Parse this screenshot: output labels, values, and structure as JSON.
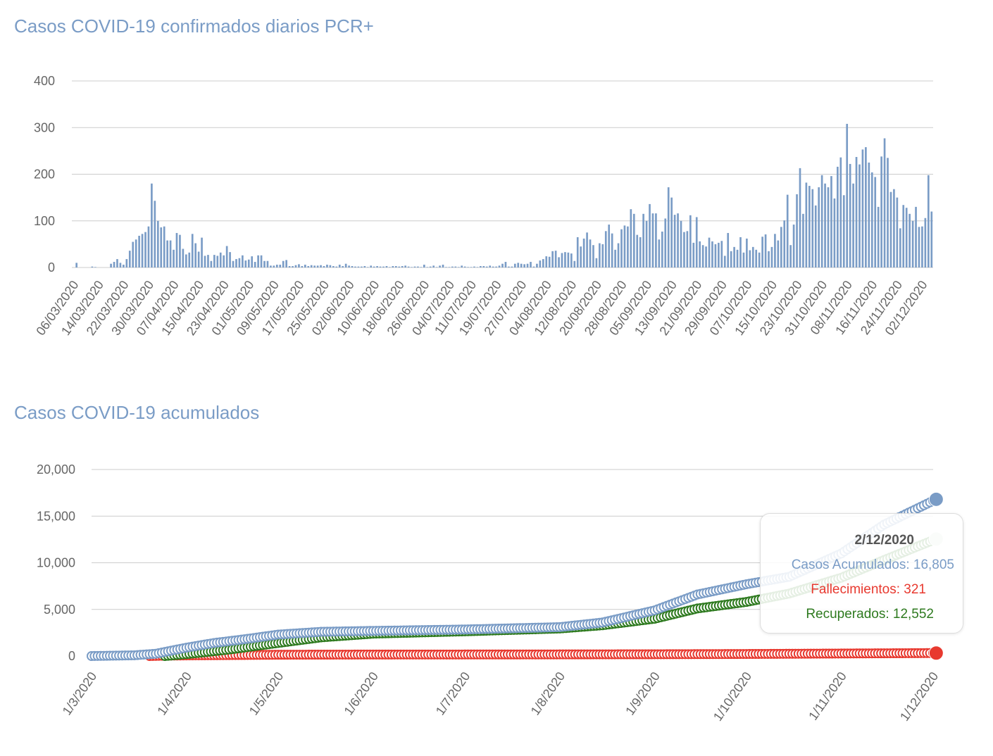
{
  "chart_data": [
    {
      "type": "bar",
      "title": "Casos COVID-19 confirmados diarios PCR+",
      "ylim": [
        0,
        400
      ],
      "yticks": [
        0,
        100,
        200,
        300,
        400
      ],
      "color": "#7a9cc6",
      "grid": true,
      "start_date": "06/03/2020",
      "x_tick_labels": [
        "06/03/2020",
        "14/03/2020",
        "22/03/2020",
        "30/03/2020",
        "07/04/2020",
        "15/04/2020",
        "23/04/2020",
        "01/05/2020",
        "09/05/2020",
        "17/05/2020",
        "25/05/2020",
        "02/06/2020",
        "10/06/2020",
        "18/06/2020",
        "26/06/2020",
        "04/07/2020",
        "11/07/2020",
        "19/07/2020",
        "27/07/2020",
        "04/08/2020",
        "12/08/2020",
        "20/08/2020",
        "28/08/2020",
        "05/09/2020",
        "13/09/2020",
        "21/09/2020",
        "29/09/2020",
        "07/10/2020",
        "15/10/2020",
        "23/10/2020",
        "31/10/2020",
        "08/11/2020",
        "16/11/2020",
        "24/11/2020",
        "02/12/2020"
      ],
      "values": [
        0,
        10,
        0,
        0,
        0,
        0,
        2,
        1,
        0,
        0,
        0,
        0,
        8,
        12,
        18,
        10,
        6,
        18,
        36,
        55,
        60,
        68,
        72,
        76,
        88,
        180,
        143,
        100,
        86,
        88,
        58,
        58,
        38,
        74,
        70,
        40,
        28,
        32,
        72,
        52,
        34,
        64,
        25,
        27,
        14,
        27,
        25,
        32,
        26,
        46,
        33,
        14,
        18,
        20,
        26,
        15,
        17,
        24,
        12,
        26,
        26,
        14,
        14,
        4,
        4,
        6,
        6,
        14,
        16,
        3,
        3,
        5,
        7,
        3,
        6,
        3,
        5,
        4,
        4,
        5,
        3,
        6,
        5,
        3,
        2,
        6,
        3,
        8,
        4,
        3,
        2,
        2,
        2,
        3,
        1,
        4,
        2,
        3,
        2,
        2,
        3,
        1,
        3,
        3,
        2,
        3,
        4,
        2,
        1,
        2,
        2,
        1,
        6,
        1,
        2,
        4,
        1,
        4,
        6,
        1,
        1,
        2,
        2,
        1,
        4,
        2,
        1,
        1,
        2,
        1,
        3,
        3,
        2,
        4,
        2,
        2,
        4,
        8,
        12,
        2,
        2,
        8,
        10,
        8,
        7,
        8,
        12,
        2,
        8,
        15,
        18,
        24,
        23,
        35,
        36,
        22,
        31,
        33,
        32,
        30,
        14,
        65,
        45,
        62,
        75,
        60,
        48,
        20,
        52,
        50,
        78,
        92,
        73,
        38,
        52,
        82,
        90,
        88,
        125,
        115,
        70,
        65,
        115,
        100,
        136,
        116,
        116,
        60,
        77,
        105,
        172,
        150,
        113,
        116,
        100,
        76,
        78,
        112,
        53,
        108,
        56,
        48,
        45,
        64,
        56,
        50,
        53,
        57,
        25,
        74,
        35,
        44,
        38,
        65,
        32,
        62,
        37,
        44,
        38,
        32,
        66,
        71,
        35,
        44,
        72,
        58,
        87,
        101,
        156,
        48,
        92,
        157,
        213,
        115,
        182,
        175,
        168,
        133,
        172,
        198,
        180,
        172,
        196,
        148,
        216,
        236,
        155,
        308,
        222,
        180,
        237,
        221,
        253,
        258,
        225,
        204,
        194,
        130,
        238,
        277,
        235,
        162,
        168,
        150,
        84,
        134,
        128,
        115,
        100,
        130,
        87,
        88,
        106,
        198,
        120
      ]
    },
    {
      "type": "scatter",
      "title": "Casos COVID-19 acumulados",
      "ylim": [
        0,
        20000
      ],
      "yticks": [
        "0",
        "5,000",
        "10,000",
        "15,000",
        "20,000"
      ],
      "grid": true,
      "x_tick_labels": [
        "1/3/2020",
        "1/4/2020",
        "1/5/2020",
        "1/6/2020",
        "1/7/2020",
        "1/8/2020",
        "1/9/2020",
        "1/10/2020",
        "1/11/2020",
        "1/12/2020"
      ],
      "series": [
        {
          "name": "Casos Acumulados",
          "color": "#7a9cc6",
          "points": [
            [
              "1/3/2020",
              0
            ],
            [
              "15/3/2020",
              80
            ],
            [
              "22/3/2020",
              250
            ],
            [
              "1/4/2020",
              900
            ],
            [
              "10/4/2020",
              1400
            ],
            [
              "20/4/2020",
              1800
            ],
            [
              "1/5/2020",
              2300
            ],
            [
              "15/5/2020",
              2600
            ],
            [
              "1/6/2020",
              2700
            ],
            [
              "1/7/2020",
              2850
            ],
            [
              "1/8/2020",
              3100
            ],
            [
              "15/8/2020",
              3600
            ],
            [
              "1/9/2020",
              4900
            ],
            [
              "15/9/2020",
              6600
            ],
            [
              "1/10/2020",
              7700
            ],
            [
              "15/10/2020",
              8500
            ],
            [
              "1/11/2020",
              11000
            ],
            [
              "15/11/2020",
              14100
            ],
            [
              "2/12/2020",
              16805
            ]
          ]
        },
        {
          "name": "Fallecimientos",
          "color": "#e8392f",
          "points": [
            [
              "1/3/2020",
              0
            ],
            [
              "20/3/2020",
              0
            ],
            [
              "25/3/2020",
              40
            ],
            [
              "1/4/2020",
              70
            ],
            [
              "1/5/2020",
              140
            ],
            [
              "1/6/2020",
              160
            ],
            [
              "1/7/2020",
              165
            ],
            [
              "1/8/2020",
              175
            ],
            [
              "1/9/2020",
              190
            ],
            [
              "1/10/2020",
              220
            ],
            [
              "1/11/2020",
              270
            ],
            [
              "2/12/2020",
              321
            ]
          ]
        },
        {
          "name": "Recuperados",
          "color": "#2e7a1f",
          "points": [
            [
              "1/3/2020",
              0
            ],
            [
              "25/3/2020",
              0
            ],
            [
              "1/4/2020",
              200
            ],
            [
              "15/4/2020",
              700
            ],
            [
              "1/5/2020",
              1400
            ],
            [
              "15/5/2020",
              2000
            ],
            [
              "1/6/2020",
              2400
            ],
            [
              "1/7/2020",
              2650
            ],
            [
              "1/8/2020",
              2950
            ],
            [
              "15/8/2020",
              3300
            ],
            [
              "1/9/2020",
              4000
            ],
            [
              "15/9/2020",
              5100
            ],
            [
              "1/10/2020",
              5800
            ],
            [
              "15/10/2020",
              6700
            ],
            [
              "1/11/2020",
              8400
            ],
            [
              "15/11/2020",
              10300
            ],
            [
              "2/12/2020",
              12552
            ]
          ]
        }
      ],
      "tooltip": {
        "date": "2/12/2020",
        "casos": "Casos Acumulados: 16,805",
        "fallecimientos": "Fallecimientos: 321",
        "recuperados": "Recuperados: 12,552"
      }
    }
  ]
}
